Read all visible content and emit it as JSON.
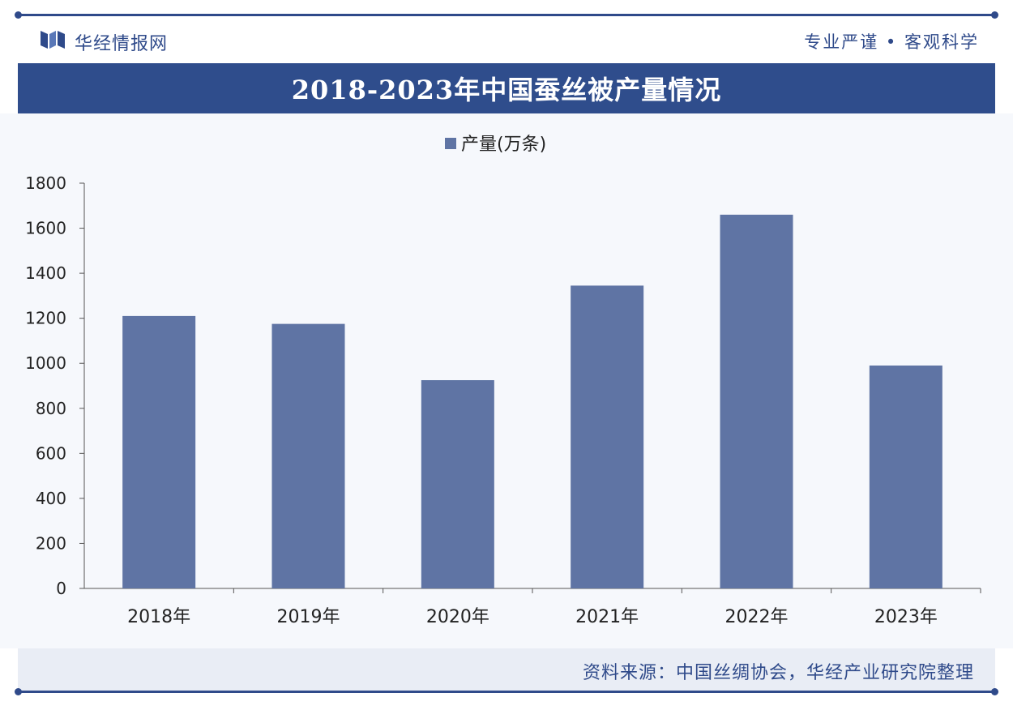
{
  "header": {
    "brand_name": "华经情报网",
    "motto": "专业严谨 • 客观科学"
  },
  "title": "2018-2023年中国蚕丝被产量情况",
  "footer": {
    "source": "资料来源：中国丝绸协会，华经产业研究院整理"
  },
  "colors": {
    "brand": "#2f4a8a",
    "title_bar": "#2f4d8c",
    "bar": "#5f74a4",
    "footer_bg": "#e9edf5"
  },
  "chart_data": {
    "type": "bar",
    "categories": [
      "2018年",
      "2019年",
      "2020年",
      "2021年",
      "2022年",
      "2023年"
    ],
    "series": [
      {
        "name": "产量(万条)",
        "values": [
          1210,
          1175,
          925,
          1345,
          1660,
          990
        ]
      }
    ],
    "ylim": [
      0,
      1800
    ],
    "yticks": [
      0,
      200,
      400,
      600,
      800,
      1000,
      1200,
      1400,
      1600,
      1800
    ],
    "legend_position": "top-center",
    "grid": false
  }
}
